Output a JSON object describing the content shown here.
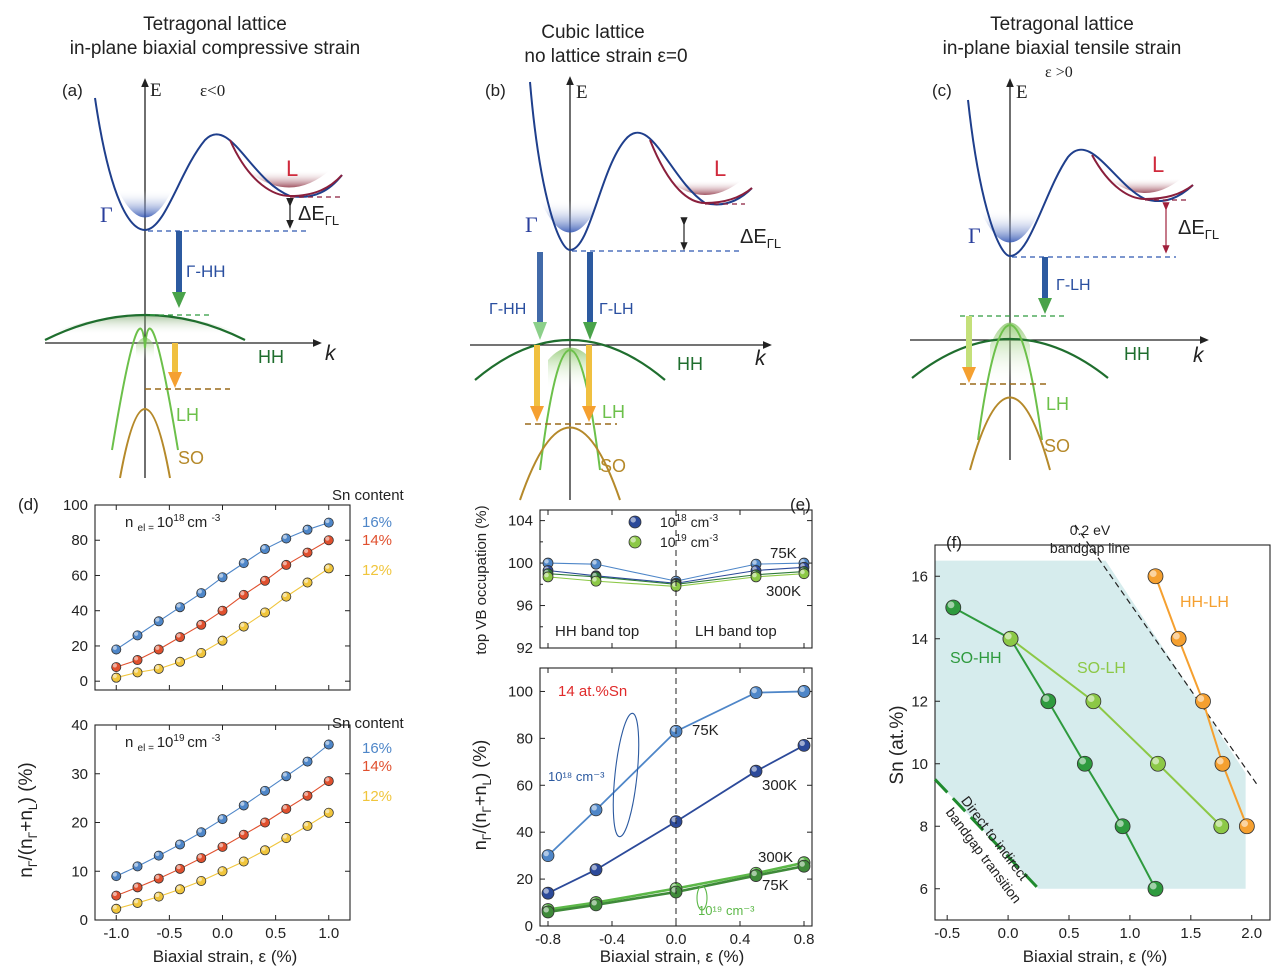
{
  "colors": {
    "cb": "#1f3f8c",
    "cbL": "#8a1f3c",
    "hh": "#1f6e2e",
    "lh": "#6cc04a",
    "so": "#b5892a",
    "g16": "#4e86c8",
    "g14": "#e0502e",
    "g12": "#f0c53c",
    "e18": "#2c4a9a",
    "e19": "#7cc24a",
    "f1": "#2e9a3e",
    "f2": "#8cc846",
    "f3": "#f5a030",
    "shade": "#cfe9ea",
    "red": "#e02a2a"
  },
  "band_panels": {
    "a": {
      "title1": "Tetragonal lattice",
      "title2": "in-plane biaxial compressive strain",
      "label": "(a)",
      "eps": "ε<0",
      "axis_e": "E",
      "axis_k": "k",
      "gamma": "Γ",
      "l": "L",
      "delta": "ΔE",
      "delta_sub": "ΓL",
      "arrow1": "Γ-HH",
      "hh": "HH",
      "lh": "LH",
      "so": "SO"
    },
    "b": {
      "title1": "Cubic lattice",
      "title2": "no lattice strain ε=0",
      "label": "(b)",
      "axis_e": "E",
      "axis_k": "k",
      "gamma": "Γ",
      "l": "L",
      "delta": "ΔE",
      "delta_sub": "ΓL",
      "arrow1": "Γ-HH",
      "arrow2": "Γ-LH",
      "hh": "HH",
      "lh": "LH",
      "so": "SO"
    },
    "c": {
      "title1": "Tetragonal lattice",
      "title2": "in-plane biaxial tensile strain",
      "label": "(c)",
      "eps": "ε >0",
      "axis_e": "E",
      "axis_k": "k",
      "gamma": "Γ",
      "l": "L",
      "delta": "ΔE",
      "delta_sub": "ΓL",
      "arrow1": "Γ-LH",
      "hh": "HH",
      "lh": "LH",
      "so": "SO"
    }
  },
  "panel_d": {
    "label": "(d)",
    "ylabel": "n_Γ/(n_Γ+n_L) (%)",
    "xlabel": "Biaxial strain, ε (%)",
    "legend_title": "Sn content"
  },
  "panel_e": {
    "label": "(e)",
    "top_ylabel": "top VB occupation (%)",
    "bottom_ylabel": "n_Γ/(n_Γ+n_L) (%)",
    "xlabel": "Biaxial strain, ε (%)",
    "hh_top": "HH band top",
    "lh_top": "LH band top",
    "sn_label": "14 at.%Sn",
    "t75": "75K",
    "t300": "300K",
    "ann18": "10¹⁸ cm⁻³",
    "ann19": "10¹⁹ cm⁻³"
  },
  "panel_f": {
    "label": "(f)",
    "ylabel": "Sn (at.%)",
    "xlabel": "Biaxial strain, ε (%)",
    "line_label1": "0.2 eV",
    "line_label2": "bandgap line",
    "transition1": "Direct to indirect",
    "transition2": "bandgap transition"
  },
  "chart_data": [
    {
      "type": "line",
      "panel": "d-top",
      "title": "n_el = 10^18 cm^-3",
      "annotation_main": "n",
      "annotation_sub": "el =",
      "annotation_val": "10",
      "annotation_exp": "18",
      "annotation_unit": "cm",
      "annotation_uexp": "-3",
      "xlim": [
        -1.2,
        1.2
      ],
      "ylim": [
        -5,
        100
      ],
      "xticks": [
        -1.0,
        -0.5,
        0.0,
        0.5,
        1.0
      ],
      "yticks": [
        0,
        20,
        40,
        60,
        80,
        100
      ],
      "x": [
        -1.0,
        -0.8,
        -0.6,
        -0.4,
        -0.2,
        0.0,
        0.2,
        0.4,
        0.6,
        0.8,
        1.0
      ],
      "series": [
        {
          "name": "16%",
          "values": [
            18,
            26,
            34,
            42,
            50,
            59,
            67,
            75,
            81,
            86,
            90
          ]
        },
        {
          "name": "14%",
          "values": [
            8,
            12,
            18,
            25,
            32,
            40,
            49,
            57,
            66,
            73,
            80
          ]
        },
        {
          "name": "12%",
          "values": [
            2,
            5,
            7,
            11,
            16,
            23,
            31,
            39,
            48,
            56,
            64
          ]
        }
      ]
    },
    {
      "type": "line",
      "panel": "d-bottom",
      "title": "n_el = 10^19 cm^-3",
      "annotation_main": "n",
      "annotation_sub": "el =",
      "annotation_val": "10",
      "annotation_exp": "19",
      "annotation_unit": "cm",
      "annotation_uexp": "-3",
      "xlim": [
        -1.2,
        1.2
      ],
      "ylim": [
        0,
        40
      ],
      "xticks": [
        -1.0,
        -0.5,
        0.0,
        0.5,
        1.0
      ],
      "yticks": [
        0,
        10,
        20,
        30,
        40
      ],
      "x": [
        -1.0,
        -0.8,
        -0.6,
        -0.4,
        -0.2,
        0.0,
        0.2,
        0.4,
        0.6,
        0.8,
        1.0
      ],
      "series": [
        {
          "name": "16%",
          "values": [
            9,
            11,
            13.2,
            15.5,
            18,
            20.7,
            23.5,
            26.5,
            29.5,
            32.5,
            36
          ]
        },
        {
          "name": "14%",
          "values": [
            5,
            6.7,
            8.5,
            10.5,
            12.7,
            15,
            17.5,
            20,
            22.8,
            25.5,
            28.5
          ]
        },
        {
          "name": "12%",
          "values": [
            2.3,
            3.5,
            4.8,
            6.3,
            8,
            10,
            12,
            14.3,
            16.8,
            19.3,
            22
          ]
        }
      ]
    },
    {
      "type": "line",
      "panel": "e-top",
      "xlim": [
        -0.85,
        0.85
      ],
      "ylim": [
        92,
        105
      ],
      "xticks": [
        -0.8,
        -0.4,
        0.0,
        0.4,
        0.8
      ],
      "yticks": [
        92,
        96,
        100,
        104
      ],
      "ytick_labels": [
        "92",
        "96",
        "100",
        "104"
      ],
      "minor_yticks": [
        94,
        98,
        102
      ],
      "x": [
        -0.8,
        -0.5,
        0.0,
        0.5,
        0.8
      ],
      "legend": [
        {
          "name": "10",
          "exp": "18",
          "unit": " cm",
          "uexp": "-3"
        },
        {
          "name": "10",
          "exp": "19",
          "unit": " cm",
          "uexp": "-3"
        }
      ],
      "series": [
        {
          "name": "10^18 cm^-3 75K",
          "values": [
            100,
            99.9,
            98.3,
            99.9,
            100
          ]
        },
        {
          "name": "10^18 cm^-3 300K",
          "values": [
            99.3,
            98.8,
            98.1,
            99.3,
            99.6
          ]
        },
        {
          "name": "10^19 cm^-3 75K",
          "values": [
            99.0,
            98.7,
            98.0,
            98.9,
            99.2
          ]
        },
        {
          "name": "10^19 cm^-3 300K",
          "values": [
            98.7,
            98.3,
            97.8,
            98.7,
            99.0
          ]
        }
      ]
    },
    {
      "type": "line",
      "panel": "e-bottom",
      "xlim": [
        -0.85,
        0.85
      ],
      "ylim": [
        0,
        110
      ],
      "xticks": [
        -0.8,
        -0.4,
        0.0,
        0.4,
        0.8
      ],
      "yticks": [
        0,
        20,
        40,
        60,
        80,
        100
      ],
      "x": [
        -0.8,
        -0.5,
        0.0,
        0.5,
        0.8
      ],
      "series": [
        {
          "name": "10^18 cm^-3 75K",
          "values": [
            30,
            49.5,
            83,
            99.5,
            100
          ]
        },
        {
          "name": "10^18 cm^-3 300K",
          "values": [
            14,
            24,
            44.5,
            66,
            77
          ]
        },
        {
          "name": "10^19 cm^-3 300K",
          "values": [
            7,
            10,
            16,
            22.5,
            27
          ]
        },
        {
          "name": "10^19 cm^-3 75K",
          "values": [
            6,
            9,
            14.5,
            21.5,
            25.5
          ]
        }
      ]
    },
    {
      "type": "line",
      "panel": "f",
      "xlabel": "Biaxial strain, ε (%)",
      "ylabel": "Sn (at.%)",
      "xlim": [
        -0.6,
        2.15
      ],
      "ylim": [
        5,
        17
      ],
      "xticks": [
        -0.5,
        0.0,
        0.5,
        1.0,
        1.5,
        2.0
      ],
      "yticks": [
        6,
        8,
        10,
        12,
        14,
        16
      ],
      "series": [
        {
          "name": "SO-HH",
          "x": [
            -0.45,
            0.02,
            0.33,
            0.63,
            0.94,
            1.21
          ],
          "y": [
            15,
            14,
            12,
            10,
            8,
            6
          ]
        },
        {
          "name": "SO-LH",
          "x": [
            0.02,
            0.7,
            1.23,
            1.75
          ],
          "y": [
            14,
            12,
            10,
            8
          ]
        },
        {
          "name": "HH-LH",
          "x": [
            1.21,
            1.4,
            1.6,
            1.76,
            1.96
          ],
          "y": [
            16,
            14,
            12,
            10,
            8
          ]
        }
      ]
    }
  ]
}
